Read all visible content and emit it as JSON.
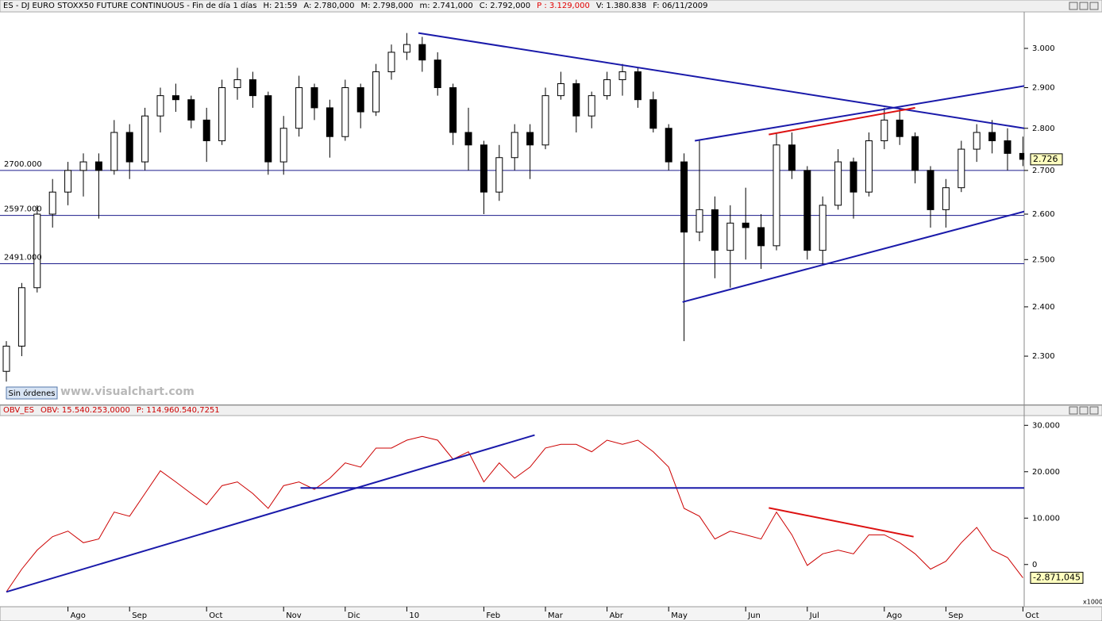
{
  "orders_button": "Sin órdenes",
  "watermark": "www.visualchart.com",
  "chart_data": [
    {
      "type": "candlestick",
      "title": "ES - DJ EURO STOXX50 FUTURE CONTINUOUS - Fin de día 1 días",
      "info": [
        "H: 21:59",
        "A: 2.780,000",
        "M: 2.798,000",
        "m: 2.741,000",
        "C: 2.792,000",
        "P : 3.129,000",
        "V: 1.380.838",
        "F: 06/11/2009"
      ],
      "log": true,
      "ylim": [
        2206,
        3096
      ],
      "yticks": [
        {
          "value": 2300,
          "label": "2.300"
        },
        {
          "value": 2400,
          "label": "2.400"
        },
        {
          "value": 2500,
          "label": "2.500"
        },
        {
          "value": 2600,
          "label": "2.600"
        },
        {
          "value": 2700,
          "label": "2.700"
        },
        {
          "value": 2800,
          "label": "2.800"
        },
        {
          "value": 2900,
          "label": "2.900"
        },
        {
          "value": 3000,
          "label": "3.000"
        }
      ],
      "categories": [
        null,
        null,
        null,
        null,
        "Ago",
        null,
        null,
        null,
        "Sep",
        null,
        null,
        null,
        null,
        "Oct",
        null,
        null,
        null,
        null,
        "Nov",
        null,
        null,
        null,
        "Dic",
        null,
        null,
        null,
        "10",
        null,
        null,
        null,
        null,
        "Feb",
        null,
        null,
        null,
        "Mar",
        null,
        null,
        null,
        "Abr",
        null,
        null,
        null,
        "May",
        null,
        null,
        null,
        null,
        "Jun",
        null,
        null,
        null,
        "Jul",
        null,
        null,
        null,
        null,
        "Ago",
        null,
        null,
        null,
        "Sep",
        null,
        null,
        null,
        null,
        "Oct"
      ],
      "open": [
        2270,
        2320,
        2440,
        2600,
        2650,
        2700,
        2720,
        2700,
        2790,
        2720,
        2830,
        2880,
        2870,
        2820,
        2770,
        2900,
        2920,
        2880,
        2720,
        2800,
        2900,
        2850,
        2780,
        2900,
        2840,
        2940,
        2990,
        3010,
        2970,
        2900,
        2790,
        2760,
        2650,
        2730,
        2790,
        2760,
        2880,
        2910,
        2830,
        2880,
        2920,
        2940,
        2870,
        2800,
        2720,
        2560,
        2610,
        2520,
        2580,
        2570,
        2530,
        2760,
        2700,
        2520,
        2620,
        2720,
        2650,
        2770,
        2820,
        2780,
        2700,
        2610,
        2660,
        2750,
        2790,
        2770,
        2740
      ],
      "high": [
        2330,
        2450,
        2620,
        2680,
        2720,
        2740,
        2740,
        2820,
        2810,
        2850,
        2900,
        2910,
        2880,
        2850,
        2920,
        2950,
        2940,
        2890,
        2830,
        2930,
        2910,
        2870,
        2920,
        2910,
        2960,
        3010,
        3040,
        3030,
        2990,
        2910,
        2850,
        2770,
        2760,
        2810,
        2810,
        2900,
        2940,
        2920,
        2890,
        2940,
        2960,
        2950,
        2890,
        2810,
        2740,
        2770,
        2640,
        2620,
        2660,
        2600,
        2790,
        2790,
        2710,
        2640,
        2750,
        2730,
        2790,
        2850,
        2850,
        2790,
        2710,
        2680,
        2770,
        2810,
        2820,
        2800,
        2780
      ],
      "low": [
        2250,
        2300,
        2430,
        2570,
        2620,
        2640,
        2590,
        2690,
        2680,
        2700,
        2790,
        2840,
        2800,
        2720,
        2760,
        2870,
        2850,
        2690,
        2690,
        2780,
        2820,
        2730,
        2770,
        2800,
        2830,
        2920,
        2970,
        2940,
        2880,
        2760,
        2700,
        2600,
        2630,
        2700,
        2680,
        2750,
        2870,
        2790,
        2800,
        2870,
        2880,
        2850,
        2790,
        2700,
        2330,
        2540,
        2460,
        2440,
        2500,
        2480,
        2520,
        2680,
        2500,
        2490,
        2610,
        2590,
        2640,
        2750,
        2760,
        2670,
        2570,
        2570,
        2650,
        2720,
        2740,
        2700,
        2710
      ],
      "close": [
        2320,
        2440,
        2600,
        2650,
        2700,
        2720,
        2700,
        2790,
        2720,
        2830,
        2880,
        2870,
        2820,
        2770,
        2900,
        2920,
        2880,
        2720,
        2800,
        2900,
        2850,
        2780,
        2900,
        2840,
        2940,
        2990,
        3010,
        2970,
        2900,
        2790,
        2760,
        2650,
        2730,
        2790,
        2760,
        2880,
        2910,
        2830,
        2880,
        2920,
        2940,
        2870,
        2800,
        2720,
        2560,
        2610,
        2520,
        2580,
        2570,
        2530,
        2760,
        2700,
        2520,
        2620,
        2720,
        2650,
        2770,
        2820,
        2780,
        2700,
        2610,
        2660,
        2750,
        2790,
        2770,
        2740,
        2726
      ],
      "last_value": {
        "value": 2726,
        "label": "2.726"
      },
      "levels": [
        {
          "value": 2700,
          "label": "2700.000"
        },
        {
          "value": 2597,
          "label": "2597.000"
        },
        {
          "value": 2491,
          "label": "2491.000"
        }
      ],
      "level_color": "#1c1c8c",
      "lines": [
        {
          "x": [
            26.75,
            66.1
          ],
          "y": [
            3040,
            2800
          ],
          "color": "#1a1aaa"
        },
        {
          "x": [
            43.9,
            66.2
          ],
          "y": [
            2410,
            2607
          ],
          "color": "#1a1aaa"
        },
        {
          "x": [
            44.7,
            66.2
          ],
          "y": [
            2770,
            2905
          ],
          "color": "#1a1aaa"
        },
        {
          "x": [
            49.5,
            59
          ],
          "y": [
            2785,
            2850
          ],
          "color": "#dd1111"
        }
      ]
    },
    {
      "type": "line",
      "title": "OBV_ES",
      "info": [
        "OBV: 15.540.253,0000",
        "P: 114.960.540,7251"
      ],
      "color": "#cc0000",
      "ylim": [
        -9100,
        32100
      ],
      "yticks": [
        0,
        {
          "value": 10000,
          "label": "10.000"
        },
        {
          "value": 20000,
          "label": "20.000"
        },
        {
          "value": 30000,
          "label": "30.000"
        }
      ],
      "unit_label": "x1000",
      "values": [
        -5900,
        -1000,
        3100,
        6000,
        7200,
        4700,
        5500,
        11300,
        10400,
        15300,
        20200,
        17800,
        15300,
        12900,
        17000,
        17800,
        15300,
        12100,
        17000,
        17800,
        16200,
        18600,
        21900,
        21000,
        25100,
        25100,
        26800,
        27600,
        26800,
        22700,
        24300,
        17800,
        21900,
        18600,
        21000,
        25100,
        25900,
        25900,
        24300,
        26800,
        25900,
        26800,
        24300,
        21000,
        12100,
        10400,
        5500,
        7200,
        6400,
        5500,
        11300,
        6400,
        -200,
        2300,
        3100,
        2300,
        6400,
        6400,
        4700,
        2300,
        -1000,
        700,
        4700,
        8000,
        3100,
        1500,
        -2871.045
      ],
      "last_value": {
        "value": -2871.045,
        "label": "-2.871,045"
      },
      "lines": [
        {
          "x": [
            0,
            34.3
          ],
          "y": [
            -5900,
            27900
          ],
          "color": "#1a1aaa"
        },
        {
          "x": [
            19.1,
            66.1
          ],
          "y": [
            16500,
            16500
          ],
          "color": "#1a1aaa"
        },
        {
          "x": [
            49.5,
            58.9
          ],
          "y": [
            12200,
            6000
          ],
          "color": "#dd1111"
        }
      ]
    }
  ]
}
